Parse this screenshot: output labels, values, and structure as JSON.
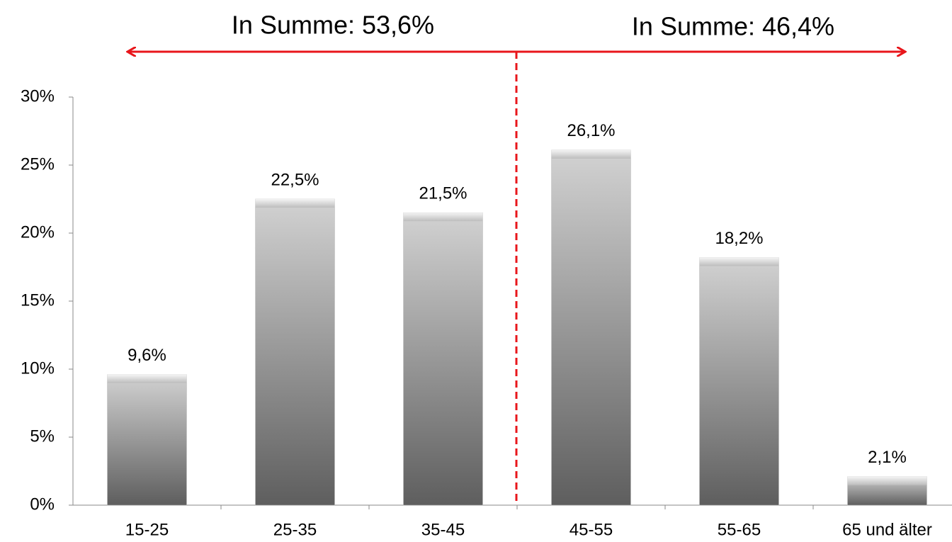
{
  "chart_data": {
    "type": "bar",
    "annotations": [
      "In Summe: 53,6%",
      "In Summe: 46,4%"
    ],
    "categories": [
      "15-25",
      "25-35",
      "35-45",
      "45-55",
      "55-65",
      "65 und älter"
    ],
    "values": [
      9.6,
      22.5,
      21.5,
      26.1,
      18.2,
      2.1
    ],
    "value_labels": [
      "9,6%",
      "22,5%",
      "21,5%",
      "26,1%",
      "18,2%",
      "2,1%"
    ],
    "ylim": [
      0,
      30
    ],
    "yticks": [
      {
        "value": 0,
        "label": "0%"
      },
      {
        "value": 5,
        "label": "5%"
      },
      {
        "value": 10,
        "label": "10%"
      },
      {
        "value": 15,
        "label": "15%"
      },
      {
        "value": 20,
        "label": "20%"
      },
      {
        "value": 25,
        "label": "25%"
      },
      {
        "value": 30,
        "label": "30%"
      }
    ],
    "grid": false
  }
}
